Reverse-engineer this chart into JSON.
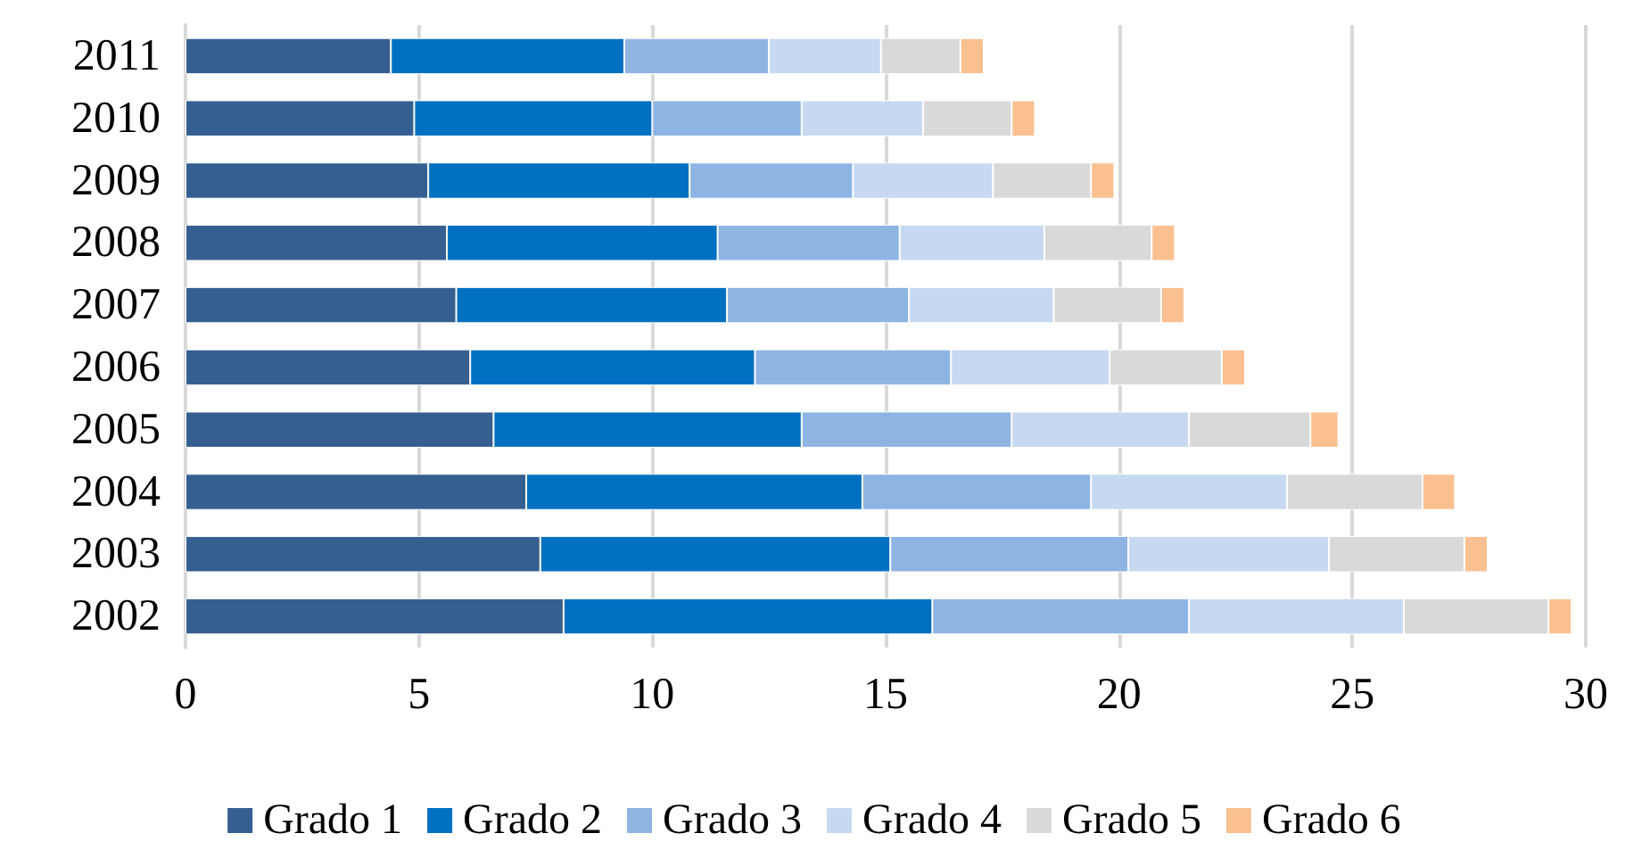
{
  "chart_data": {
    "type": "bar",
    "orientation": "horizontal",
    "stacked": true,
    "categories": [
      "2011",
      "2010",
      "2009",
      "2008",
      "2007",
      "2006",
      "2005",
      "2004",
      "2003",
      "2002"
    ],
    "series": [
      {
        "name": "Grado 1",
        "color": "#365f91",
        "values": [
          4.4,
          4.9,
          5.2,
          5.6,
          5.8,
          6.1,
          6.6,
          7.3,
          7.6,
          8.1
        ]
      },
      {
        "name": "Grado 2",
        "color": "#0070c0",
        "values": [
          5.0,
          5.1,
          5.6,
          5.8,
          5.8,
          6.1,
          6.6,
          7.2,
          7.5,
          7.9
        ]
      },
      {
        "name": "Grado 3",
        "color": "#8eb4e3",
        "values": [
          3.1,
          3.2,
          3.5,
          3.9,
          3.9,
          4.2,
          4.5,
          4.9,
          5.1,
          5.5
        ]
      },
      {
        "name": "Grado 4",
        "color": "#c6d9f1",
        "values": [
          2.4,
          2.6,
          3.0,
          3.1,
          3.1,
          3.4,
          3.8,
          4.2,
          4.3,
          4.6
        ]
      },
      {
        "name": "Grado 5",
        "color": "#d9d9d9",
        "values": [
          1.7,
          1.9,
          2.1,
          2.3,
          2.3,
          2.4,
          2.6,
          2.9,
          2.9,
          3.1
        ]
      },
      {
        "name": "Grado 6",
        "color": "#fac090",
        "values": [
          0.5,
          0.5,
          0.5,
          0.5,
          0.5,
          0.5,
          0.6,
          0.7,
          0.5,
          0.5
        ]
      }
    ],
    "xlim": [
      0,
      30
    ],
    "xticks": [
      0,
      5,
      10,
      15,
      20,
      25,
      30
    ],
    "grid": "x",
    "legend": "bottom"
  }
}
